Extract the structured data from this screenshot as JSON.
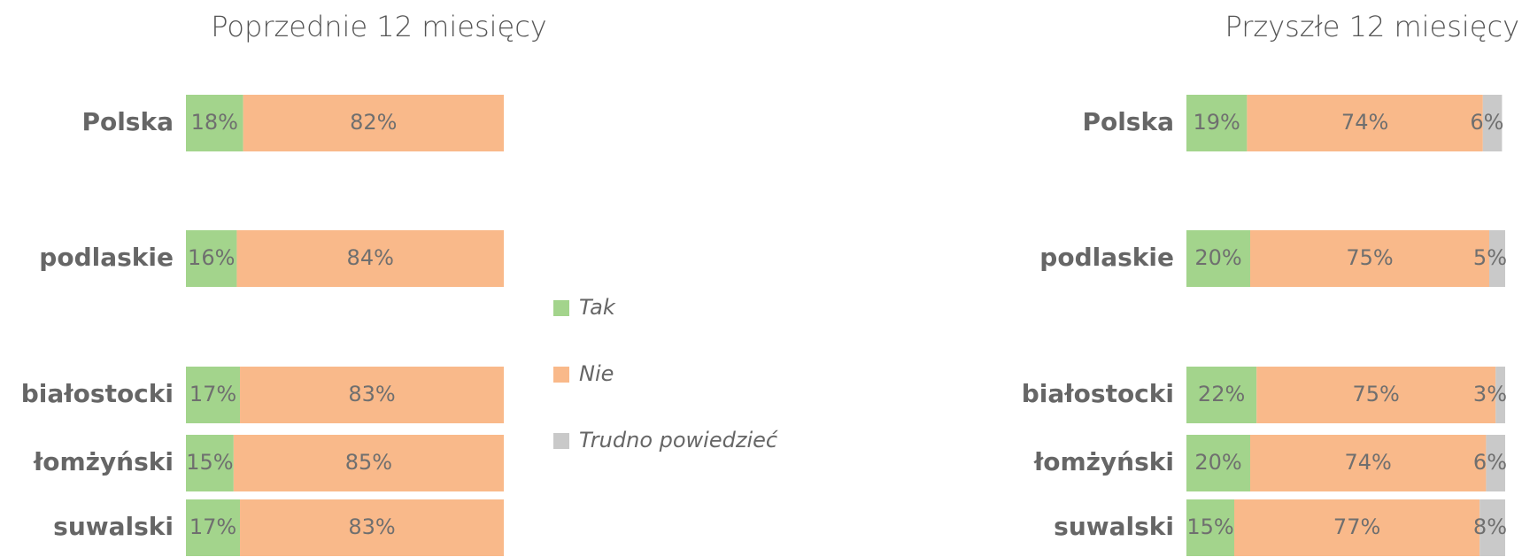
{
  "chart_data": [
    {
      "type": "bar",
      "orientation": "horizontal",
      "stacked": true,
      "title": "Poprzednie 12 miesięcy",
      "categories": [
        "Polska",
        "podlaskie",
        "białostocki",
        "łomżyński",
        "suwalski"
      ],
      "xlim": [
        0,
        100
      ],
      "series": [
        {
          "name": "Tak",
          "color": "#a3d48c",
          "values": [
            18,
            16,
            17,
            15,
            17
          ],
          "value_labels": [
            "18%",
            "16%",
            "17%",
            "15%",
            "17%"
          ]
        },
        {
          "name": "Nie",
          "color": "#f9b98a",
          "values": [
            82,
            84,
            83,
            85,
            83
          ],
          "value_labels": [
            "82%",
            "84%",
            "83%",
            "85%",
            "83%"
          ]
        }
      ]
    },
    {
      "type": "bar",
      "orientation": "horizontal",
      "stacked": true,
      "title": "Przyszłe 12 miesięcy",
      "categories": [
        "Polska",
        "podlaskie",
        "białostocki",
        "łomżyński",
        "suwalski"
      ],
      "xlim": [
        0,
        100
      ],
      "legend": "left",
      "series": [
        {
          "name": "Tak",
          "color": "#a3d48c",
          "values": [
            19,
            20,
            22,
            20,
            15
          ],
          "value_labels": [
            "19%",
            "20%",
            "22%",
            "20%",
            "15%"
          ]
        },
        {
          "name": "Nie",
          "color": "#f9b98a",
          "values": [
            74,
            75,
            75,
            74,
            77
          ],
          "value_labels": [
            "74%",
            "75%",
            "75%",
            "74%",
            "77%"
          ]
        },
        {
          "name": "Trudno powiedzieć",
          "color": "#c9c9c9",
          "values": [
            6,
            5,
            3,
            6,
            8
          ],
          "value_labels": [
            "6%",
            "5%",
            "3%",
            "6%",
            "8%"
          ]
        }
      ]
    }
  ]
}
